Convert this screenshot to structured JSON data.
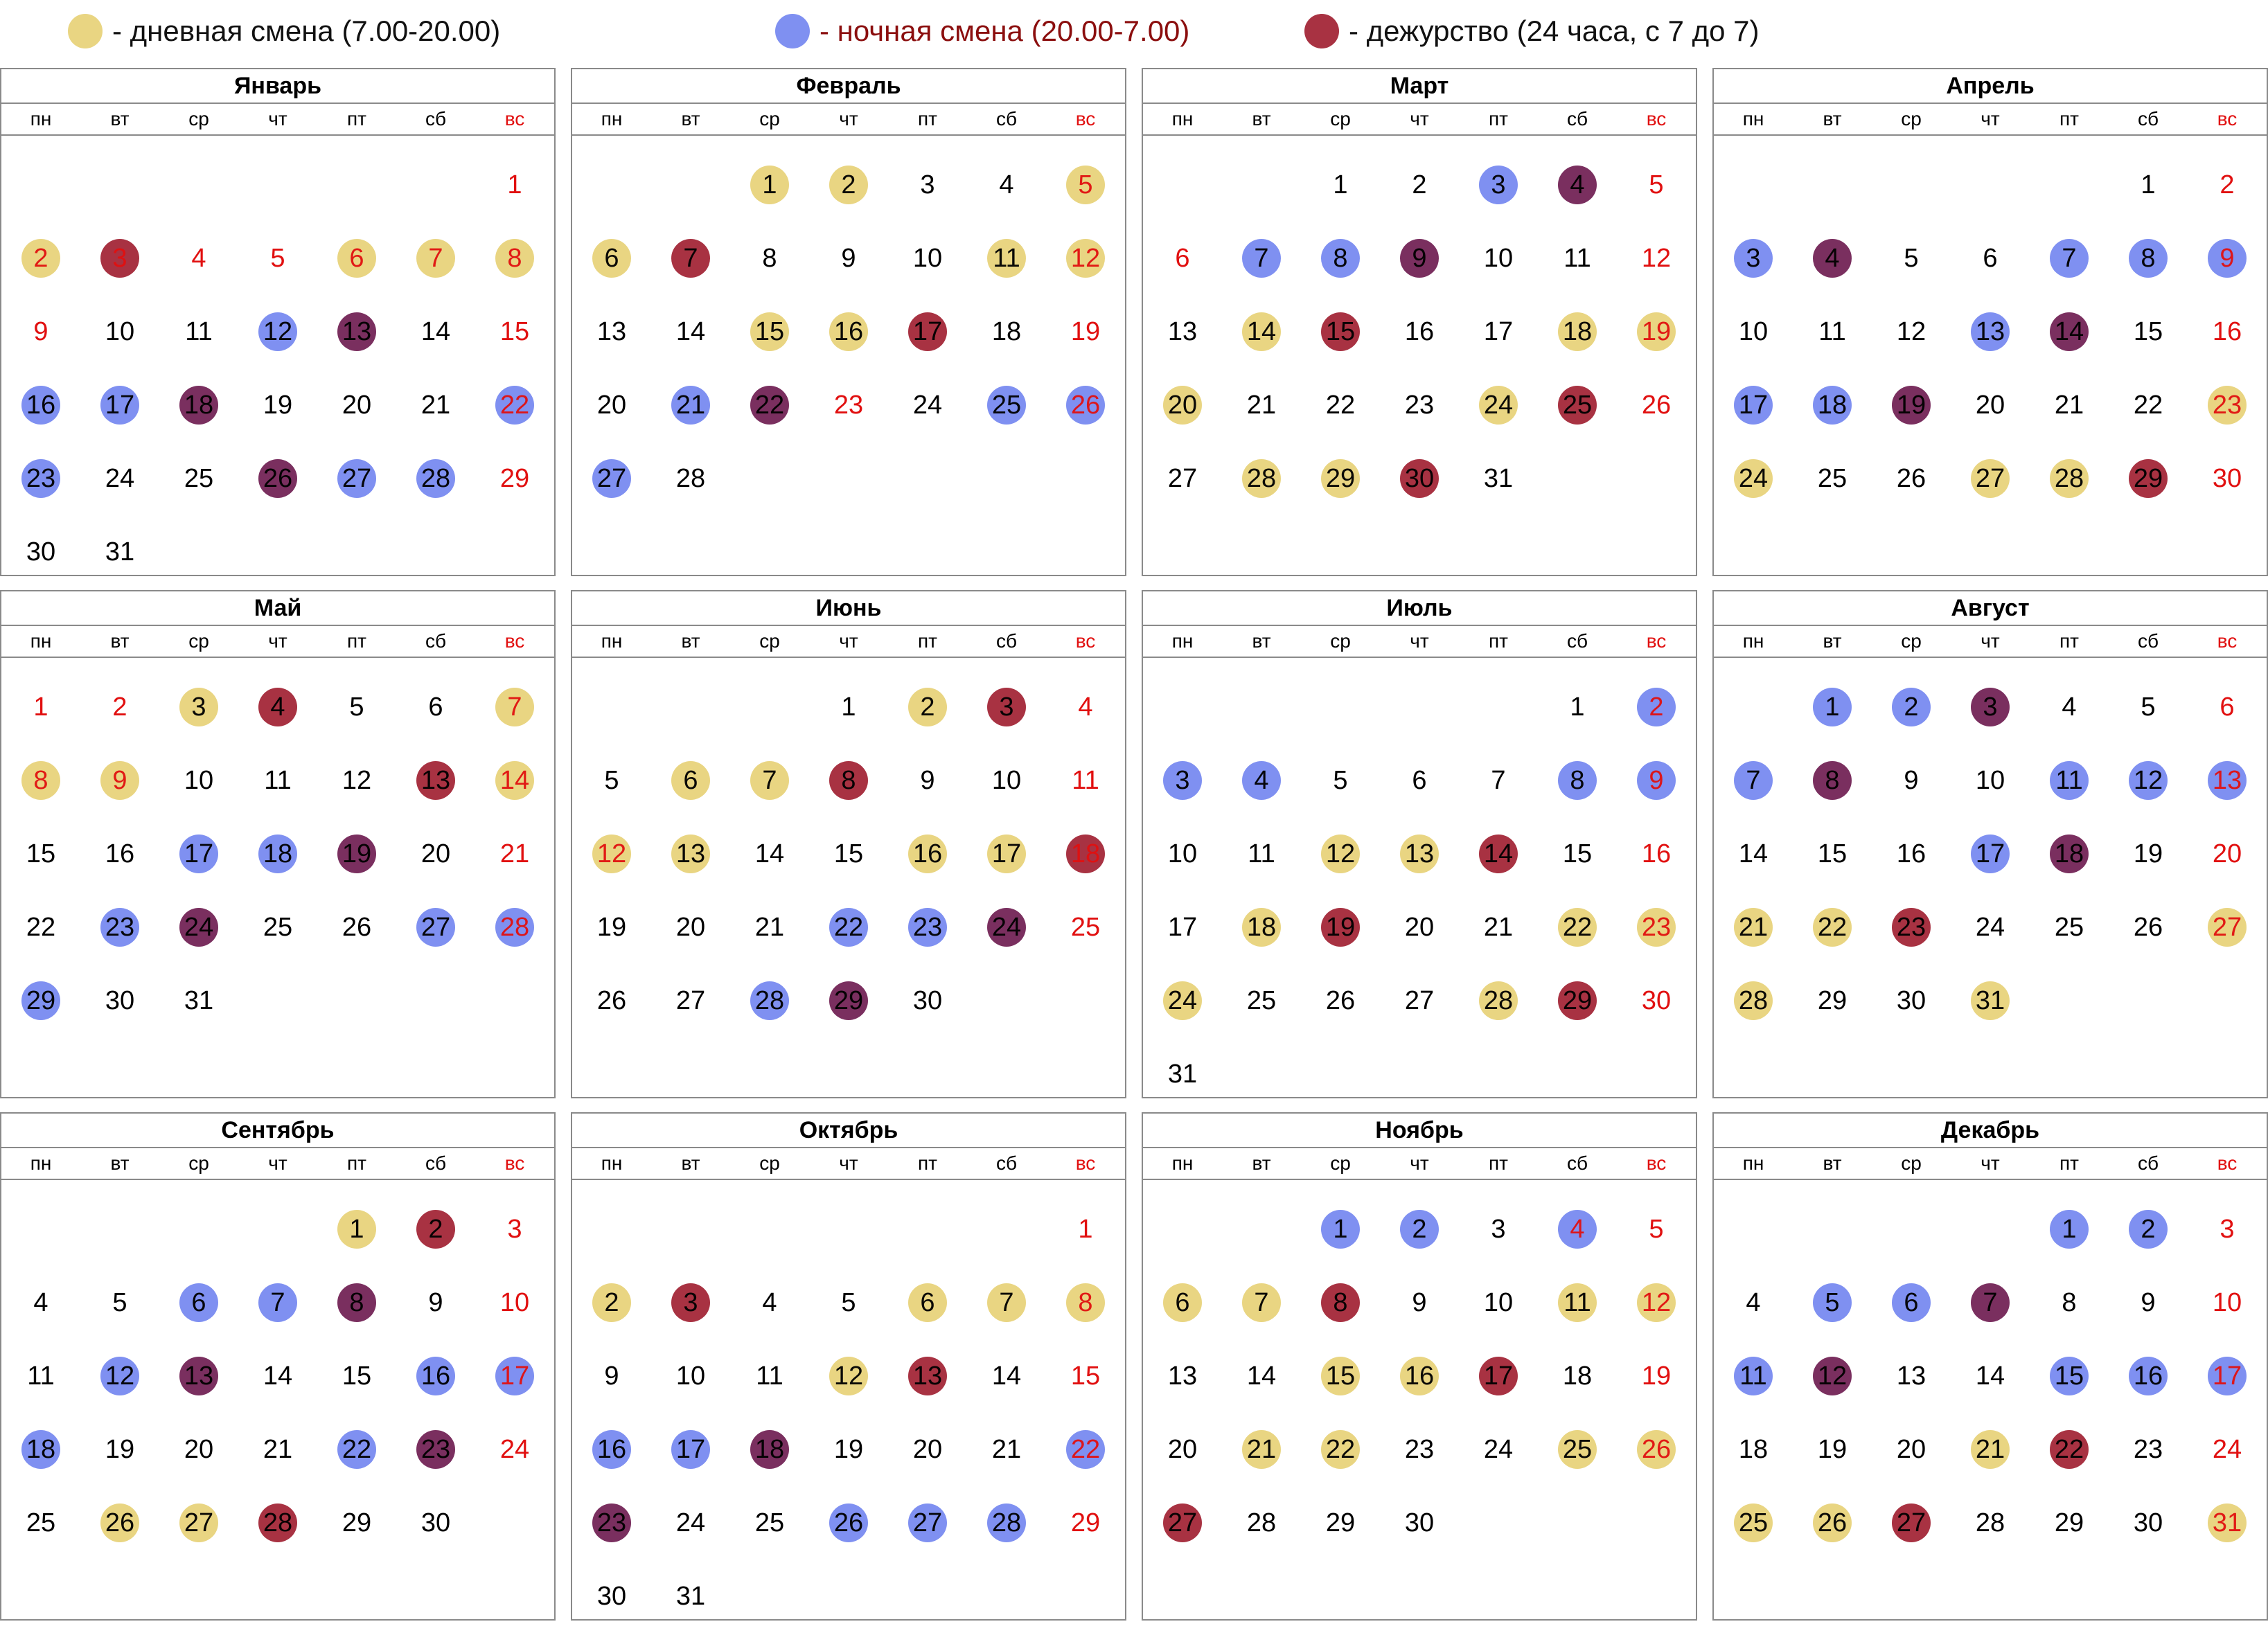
{
  "legend": [
    {
      "text": "- дневная смена (7.00-20.00)",
      "color": "#e9d582",
      "text_color": "#111111"
    },
    {
      "text": "- ночная смена (20.00-7.00)",
      "color": "#7f90f1",
      "text_color": "#8b0e0e"
    },
    {
      "text": "- дежурство (24 часа, с 7 до 7)",
      "color": "#a83242",
      "text_color": "#111111"
    }
  ],
  "weekdays": [
    "пн",
    "вт",
    "ср",
    "чт",
    "пт",
    "сб",
    "вс"
  ],
  "colors": {
    "day": "#e9d582",
    "night": "#7f90f1",
    "duty": "#a83242",
    "dn": "#7a2f5f",
    "weekend": "#e11010"
  },
  "months": [
    {
      "name": "Январь",
      "offset": 6,
      "days": 31,
      "red": [
        1,
        2,
        3,
        4,
        5,
        6,
        7,
        8,
        9,
        15,
        22,
        29
      ],
      "marks": {
        "2": "day",
        "3": "duty",
        "6": "day",
        "7": "day",
        "8": "day",
        "12": "night",
        "13": "dn",
        "16": "night",
        "17": "night",
        "18": "dn",
        "22": "night",
        "23": "night",
        "26": "dn",
        "27": "night",
        "28": "night"
      }
    },
    {
      "name": "Февраль",
      "offset": 2,
      "days": 28,
      "red": [
        5,
        12,
        19,
        23,
        26
      ],
      "marks": {
        "1": "day",
        "2": "day",
        "5": "day",
        "6": "day",
        "7": "duty",
        "11": "day",
        "12": "day",
        "15": "day",
        "16": "day",
        "17": "duty",
        "21": "night",
        "22": "dn",
        "25": "night",
        "26": "night",
        "27": "night"
      }
    },
    {
      "name": "Март",
      "offset": 2,
      "days": 31,
      "red": [
        5,
        6,
        12,
        19,
        26
      ],
      "marks": {
        "3": "night",
        "4": "dn",
        "7": "night",
        "8": "night",
        "9": "dn",
        "14": "day",
        "15": "duty",
        "18": "day",
        "19": "day",
        "20": "day",
        "24": "day",
        "25": "duty",
        "28": "day",
        "29": "day",
        "30": "duty"
      }
    },
    {
      "name": "Апрель",
      "offset": 5,
      "days": 30,
      "red": [
        2,
        9,
        16,
        23,
        30
      ],
      "marks": {
        "3": "night",
        "4": "dn",
        "7": "night",
        "8": "night",
        "9": "night",
        "13": "night",
        "14": "dn",
        "17": "night",
        "18": "night",
        "19": "dn",
        "23": "day",
        "24": "day",
        "27": "day",
        "28": "day",
        "29": "duty"
      }
    },
    {
      "name": "Май",
      "offset": 0,
      "days": 31,
      "red": [
        1,
        2,
        7,
        8,
        9,
        14,
        21,
        28
      ],
      "marks": {
        "3": "day",
        "4": "duty",
        "7": "day",
        "8": "day",
        "9": "day",
        "13": "duty",
        "14": "day",
        "17": "night",
        "18": "night",
        "19": "dn",
        "23": "night",
        "24": "dn",
        "27": "night",
        "28": "night",
        "29": "night"
      }
    },
    {
      "name": "Июнь",
      "offset": 3,
      "days": 30,
      "red": [
        4,
        11,
        12,
        18,
        25
      ],
      "marks": {
        "2": "day",
        "3": "duty",
        "6": "day",
        "7": "day",
        "8": "duty",
        "12": "day",
        "13": "day",
        "16": "day",
        "17": "day",
        "18": "duty",
        "22": "night",
        "23": "night",
        "24": "dn",
        "28": "night",
        "29": "dn"
      }
    },
    {
      "name": "Июль",
      "offset": 5,
      "days": 31,
      "red": [
        2,
        9,
        16,
        23,
        30
      ],
      "marks": {
        "2": "night",
        "3": "night",
        "4": "night",
        "8": "night",
        "9": "night",
        "12": "day",
        "13": "day",
        "14": "duty",
        "18": "day",
        "19": "duty",
        "22": "day",
        "23": "day",
        "24": "day",
        "28": "day",
        "29": "duty"
      }
    },
    {
      "name": "Август",
      "offset": 1,
      "days": 31,
      "red": [
        6,
        13,
        20,
        27
      ],
      "marks": {
        "1": "night",
        "2": "night",
        "3": "dn",
        "7": "night",
        "8": "dn",
        "11": "night",
        "12": "night",
        "13": "night",
        "17": "night",
        "18": "dn",
        "21": "day",
        "22": "day",
        "23": "duty",
        "27": "day",
        "28": "day",
        "31": "day"
      }
    },
    {
      "name": "Сентябрь",
      "offset": 4,
      "days": 30,
      "red": [
        3,
        10,
        17,
        24
      ],
      "marks": {
        "1": "day",
        "2": "duty",
        "6": "night",
        "7": "night",
        "8": "dn",
        "12": "night",
        "13": "dn",
        "16": "night",
        "17": "night",
        "18": "night",
        "22": "night",
        "23": "dn",
        "26": "day",
        "27": "day",
        "28": "duty"
      }
    },
    {
      "name": "Октябрь",
      "offset": 6,
      "days": 31,
      "red": [
        1,
        8,
        15,
        22,
        29
      ],
      "marks": {
        "2": "day",
        "3": "duty",
        "6": "day",
        "7": "day",
        "8": "day",
        "12": "day",
        "13": "duty",
        "16": "night",
        "17": "night",
        "18": "dn",
        "22": "night",
        "23": "dn",
        "26": "night",
        "27": "night",
        "28": "night"
      }
    },
    {
      "name": "Ноябрь",
      "offset": 2,
      "days": 30,
      "red": [
        4,
        5,
        12,
        19,
        26
      ],
      "marks": {
        "1": "night",
        "2": "night",
        "4": "night",
        "6": "day",
        "7": "day",
        "8": "duty",
        "11": "day",
        "12": "day",
        "15": "day",
        "16": "day",
        "17": "duty",
        "21": "day",
        "22": "day",
        "25": "day",
        "26": "day",
        "27": "duty"
      }
    },
    {
      "name": "Декабрь",
      "offset": 4,
      "days": 31,
      "red": [
        3,
        10,
        17,
        24,
        31
      ],
      "marks": {
        "1": "night",
        "2": "night",
        "5": "night",
        "6": "night",
        "7": "dn",
        "11": "night",
        "12": "dn",
        "15": "night",
        "16": "night",
        "17": "night",
        "21": "day",
        "22": "duty",
        "25": "day",
        "26": "day",
        "27": "duty",
        "31": "day"
      }
    }
  ]
}
